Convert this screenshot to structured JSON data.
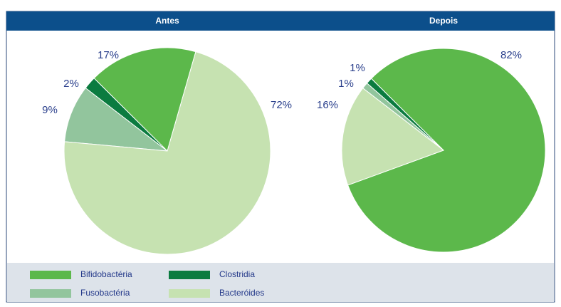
{
  "chart_data": [
    {
      "type": "pie",
      "title": "Antes",
      "categories": [
        "Bifidobactéria",
        "Clostridia",
        "Fusobactéria",
        "Bacteróides"
      ],
      "values": [
        17,
        2,
        9,
        72
      ],
      "value_labels": [
        "17%",
        "2%",
        "9%",
        "72%"
      ],
      "colors": [
        "#5cb84b",
        "#0b7b40",
        "#92c59d",
        "#c6e2b1"
      ]
    },
    {
      "type": "pie",
      "title": "Depois",
      "categories": [
        "Bifidobactéria",
        "Clostridia",
        "Fusobactéria",
        "Bacteróides"
      ],
      "values": [
        82,
        1,
        1,
        16
      ],
      "value_labels": [
        "82%",
        "1%",
        "1%",
        "16%"
      ],
      "colors": [
        "#5cb84b",
        "#0b7b40",
        "#92c59d",
        "#c6e2b1"
      ]
    }
  ]
}
